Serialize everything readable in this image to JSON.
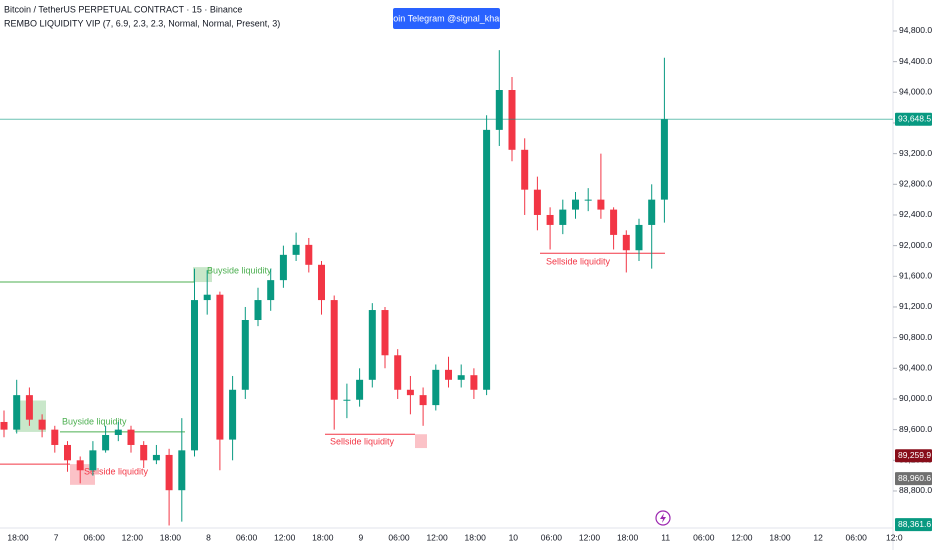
{
  "chart_data": {
    "type": "candlestick",
    "title": "Bitcoin / TetherUS PERPETUAL CONTRACT · 15 · Binance",
    "subtitle": "REMBO LIQUIDITY VIP (7, 6.9, 2.3, 2.3, Normal, Normal, Present, 3)",
    "button": "Join Telegram @signal_khan",
    "up_color": "#089981",
    "down_color": "#f23645",
    "ylim": [
      88317,
      95204
    ],
    "yticks": [
      {
        "value": 88800,
        "label": "88,800.0"
      },
      {
        "value": 89200,
        "label": "89,200.0"
      },
      {
        "value": 89600,
        "label": "89,600.0"
      },
      {
        "value": 90000,
        "label": "90,000.0"
      },
      {
        "value": 90400,
        "label": "90,400.0"
      },
      {
        "value": 90800,
        "label": "90,800.0"
      },
      {
        "value": 91200,
        "label": "91,200.0"
      },
      {
        "value": 91600,
        "label": "91,600.0"
      },
      {
        "value": 92000,
        "label": "92,000.0"
      },
      {
        "value": 92400,
        "label": "92,400.0"
      },
      {
        "value": 92800,
        "label": "92,800.0"
      },
      {
        "value": 93200,
        "label": "93,200.0"
      },
      {
        "value": 93600,
        "label": "93,600.0"
      },
      {
        "value": 94000,
        "label": "94,000.0"
      },
      {
        "value": 94400,
        "label": "94,400.0"
      },
      {
        "value": 94800,
        "label": "94,800.0"
      }
    ],
    "time_labels": [
      "18:00",
      "7",
      "06:00",
      "12:00",
      "18:00",
      "8",
      "06:00",
      "12:00",
      "18:00",
      "9",
      "06:00",
      "12:00",
      "18:00",
      "10",
      "06:00",
      "12:00",
      "18:00",
      "11",
      "06:00",
      "12:00",
      "18:00",
      "12",
      "06:00",
      "12:0"
    ],
    "candles": [
      [
        89700,
        89850,
        89500,
        89600
      ],
      [
        89600,
        90250,
        89550,
        90050
      ],
      [
        90050,
        90150,
        89650,
        89730
      ],
      [
        89730,
        89800,
        89500,
        89600
      ],
      [
        89600,
        89650,
        89300,
        89400
      ],
      [
        89400,
        89450,
        89050,
        89200
      ],
      [
        89200,
        89250,
        88900,
        89070
      ],
      [
        89070,
        89450,
        89000,
        89330
      ],
      [
        89330,
        89650,
        89300,
        89530
      ],
      [
        89530,
        89700,
        89450,
        89600
      ],
      [
        89600,
        89650,
        89300,
        89400
      ],
      [
        89400,
        89450,
        89100,
        89200
      ],
      [
        89200,
        89400,
        89150,
        89270
      ],
      [
        89270,
        89350,
        88350,
        88810
      ],
      [
        88810,
        89750,
        88400,
        89330
      ],
      [
        89330,
        91700,
        89250,
        91290
      ],
      [
        91290,
        91680,
        91100,
        91360
      ],
      [
        91360,
        91400,
        89070,
        89470
      ],
      [
        89470,
        90300,
        89200,
        90120
      ],
      [
        90120,
        91200,
        90000,
        91030
      ],
      [
        91030,
        91450,
        90950,
        91290
      ],
      [
        91290,
        91700,
        91150,
        91550
      ],
      [
        91550,
        92000,
        91450,
        91880
      ],
      [
        91880,
        92170,
        91800,
        92010
      ],
      [
        92010,
        92100,
        91650,
        91750
      ],
      [
        91750,
        91800,
        91100,
        91290
      ],
      [
        91290,
        91350,
        89600,
        89990
      ],
      [
        89990,
        90200,
        89750,
        89990
      ],
      [
        89990,
        90400,
        89900,
        90250
      ],
      [
        90250,
        91250,
        90150,
        91160
      ],
      [
        91160,
        91200,
        90400,
        90570
      ],
      [
        90570,
        90650,
        90000,
        90120
      ],
      [
        90120,
        90300,
        89800,
        90050
      ],
      [
        90050,
        90150,
        89650,
        89920
      ],
      [
        89920,
        90450,
        89850,
        90380
      ],
      [
        90380,
        90550,
        90150,
        90250
      ],
      [
        90250,
        90450,
        90150,
        90310
      ],
      [
        90310,
        90400,
        90000,
        90120
      ],
      [
        90120,
        93700,
        90050,
        93510
      ],
      [
        93510,
        94550,
        93300,
        94030
      ],
      [
        94030,
        94200,
        93100,
        93250
      ],
      [
        93250,
        93400,
        92400,
        92730
      ],
      [
        92730,
        92900,
        92200,
        92400
      ],
      [
        92400,
        92500,
        91950,
        92270
      ],
      [
        92270,
        92600,
        92150,
        92470
      ],
      [
        92470,
        92700,
        92350,
        92600
      ],
      [
        92600,
        92750,
        92450,
        92600
      ],
      [
        92600,
        93200,
        92350,
        92470
      ],
      [
        92470,
        92500,
        91950,
        92140
      ],
      [
        92140,
        92200,
        91650,
        91940
      ],
      [
        91940,
        92350,
        91800,
        92270
      ],
      [
        92270,
        92800,
        91700,
        92600
      ],
      [
        92600,
        94450,
        92300,
        93650
      ]
    ],
    "liquidity": [
      {
        "label": "Buyside liquidity",
        "color": "#4caf50",
        "level": 91525,
        "box": [
          91525,
          91720
        ]
      },
      {
        "label": "Buyside liquidity",
        "color": "#4caf50",
        "level": 89570,
        "box": [
          89570,
          89980
        ]
      },
      {
        "label": "Sellside liquidity",
        "color": "#f23645",
        "level": 89150,
        "box": [
          88880,
          89150
        ]
      },
      {
        "label": "Sellside liquidity",
        "color": "#f23645",
        "level": 89540,
        "box": [
          89360,
          89540
        ]
      },
      {
        "label": "Sellside liquidity",
        "color": "#f23645",
        "level": 91900
      }
    ],
    "price_tags": [
      {
        "value": 93648.5,
        "label": "93,648.5",
        "color": "#089981"
      },
      {
        "value": 89259.9,
        "label": "89,259.9",
        "color": "#880e1a"
      },
      {
        "value": 88960.6,
        "label": "88,960.6",
        "color": "#707070"
      },
      {
        "value": 88361.6,
        "label": "88,361.6",
        "color": "#089981"
      }
    ]
  }
}
